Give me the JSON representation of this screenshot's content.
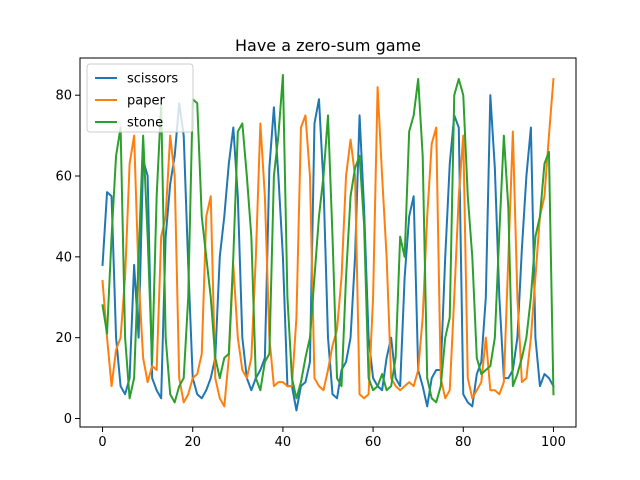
{
  "chart_data": {
    "type": "line",
    "title": "Have a zero-sum game",
    "xlabel": "",
    "ylabel": "",
    "xlim": [
      -5,
      105
    ],
    "ylim": [
      -2.1,
      89.2
    ],
    "xticks": [
      0,
      20,
      40,
      60,
      80,
      100
    ],
    "yticks": [
      0,
      20,
      40,
      60,
      80
    ],
    "grid": false,
    "legend_position": "top-left",
    "series": [
      {
        "name": "scissors",
        "color": "#1f77b4",
        "values": [
          38,
          56,
          55,
          20,
          8,
          6,
          10,
          38,
          20,
          64,
          60,
          10,
          7,
          5,
          45,
          58,
          65,
          78,
          70,
          38,
          10,
          6,
          5,
          7,
          10,
          15,
          40,
          50,
          63,
          72,
          55,
          20,
          10,
          7,
          10,
          12,
          15,
          62,
          77,
          60,
          40,
          8,
          8,
          2,
          8,
          9,
          14,
          73,
          79,
          58,
          20,
          6,
          5,
          12,
          14,
          20,
          40,
          75,
          52,
          20,
          10,
          8,
          7,
          15,
          20,
          10,
          8,
          35,
          50,
          55,
          12,
          8,
          3,
          10,
          12,
          12,
          40,
          63,
          75,
          72,
          6,
          4,
          3,
          11,
          14,
          30,
          80,
          62,
          30,
          10,
          10,
          12,
          20,
          42,
          60,
          72,
          20,
          8,
          11,
          10,
          8
        ]
      },
      {
        "name": "paper",
        "color": "#ff7f0e",
        "values": [
          34,
          20,
          8,
          17,
          20,
          35,
          63,
          70,
          35,
          15,
          9,
          13,
          12,
          45,
          50,
          70,
          60,
          10,
          4,
          6,
          10,
          11,
          16,
          50,
          55,
          10,
          5,
          3,
          15,
          38,
          20,
          12,
          10,
          15,
          40,
          73,
          55,
          20,
          8,
          9,
          9,
          8,
          8,
          25,
          72,
          75,
          60,
          10,
          8,
          7,
          12,
          18,
          22,
          35,
          60,
          69,
          60,
          6,
          5,
          6,
          30,
          82,
          60,
          40,
          10,
          8,
          7,
          8,
          9,
          8,
          12,
          25,
          50,
          68,
          72,
          10,
          5,
          7,
          30,
          55,
          70,
          10,
          5,
          7,
          9,
          20,
          7,
          7,
          6,
          9,
          40,
          71,
          30,
          9,
          10,
          20,
          35,
          50,
          55,
          70,
          84
        ]
      },
      {
        "name": "stone",
        "color": "#2ca02c",
        "values": [
          28,
          21,
          45,
          65,
          72,
          20,
          5,
          10,
          40,
          70,
          45,
          14,
          55,
          78,
          20,
          6,
          4,
          8,
          10,
          30,
          79,
          78,
          50,
          40,
          30,
          15,
          10,
          15,
          16,
          40,
          71,
          73,
          60,
          45,
          10,
          7,
          14,
          16,
          60,
          70,
          85,
          30,
          10,
          5,
          9,
          15,
          20,
          35,
          50,
          60,
          75,
          45,
          10,
          8,
          35,
          55,
          62,
          65,
          48,
          10,
          7,
          8,
          11,
          7,
          8,
          15,
          45,
          40,
          71,
          75,
          84,
          65,
          10,
          5,
          4,
          8,
          20,
          25,
          80,
          84,
          80,
          55,
          40,
          15,
          11,
          12,
          13,
          20,
          46,
          70,
          52,
          8,
          11,
          15,
          20,
          30,
          45,
          50,
          63,
          66,
          6
        ]
      }
    ]
  }
}
